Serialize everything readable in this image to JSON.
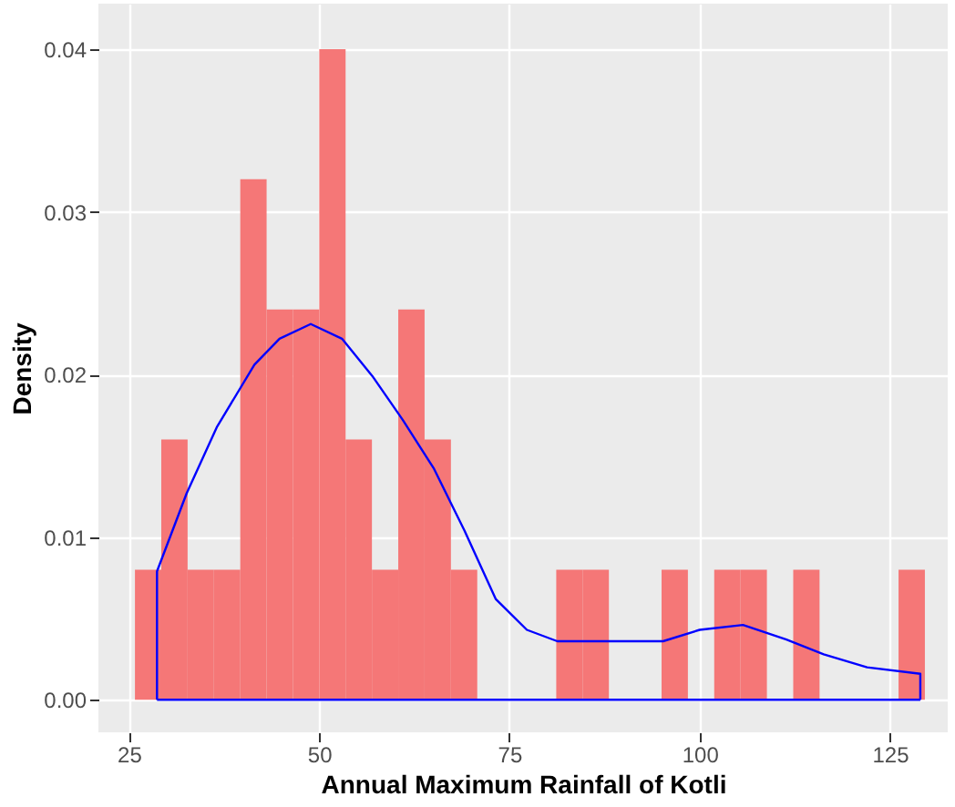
{
  "chart_data": {
    "type": "histogram",
    "xlabel": "Annual Maximum Rainfall of Kotli",
    "ylabel": "Density",
    "bins": [
      25.8,
      29.26,
      32.72,
      36.18,
      39.64,
      43.1,
      46.56,
      50.02,
      53.48,
      56.94,
      60.4,
      63.86,
      67.32,
      70.78,
      74.24,
      77.7,
      81.16,
      84.62,
      88.08,
      91.54,
      95.0,
      98.46,
      101.92,
      105.38,
      108.84,
      112.3,
      115.76,
      119.22,
      122.68,
      126.14,
      129.6
    ],
    "values": [
      0.008,
      0.016,
      0.008,
      0.008,
      0.032,
      0.024,
      0.024,
      0.04,
      0.016,
      0.008,
      0.024,
      0.016,
      0.008,
      0,
      0,
      0,
      0.008,
      0.008,
      0,
      0,
      0.008,
      0,
      0.008,
      0.008,
      0,
      0.008,
      0,
      0,
      0,
      0.008
    ],
    "color": "#f57777",
    "series": [
      {
        "type": "line",
        "color": "#0000ff",
        "x": [
          28.7,
          28.7,
          32.6,
          36.6,
          41.5,
          44.8,
          48.9,
          53.0,
          57.0,
          61.0,
          65.1,
          69.1,
          73.2,
          77.3,
          81.3,
          95.2,
          100.0,
          105.7,
          111.4,
          116.3,
          122.0,
          129.0,
          129.0
        ],
        "values": [
          0,
          0.0079,
          0.0127,
          0.0168,
          0.0206,
          0.0222,
          0.0231,
          0.0222,
          0.0199,
          0.0172,
          0.0142,
          0.0104,
          0.0062,
          0.0043,
          0.0036,
          0.0036,
          0.0043,
          0.0046,
          0.0037,
          0.0028,
          0.002,
          0.0016,
          0
        ]
      },
      {
        "type": "line",
        "color": "#0000ff",
        "x": [
          28.7,
          129.0
        ],
        "values": [
          0,
          0
        ]
      }
    ],
    "xlim": [
      21,
      132.6
    ],
    "ylim": [
      -0.002,
      0.0428
    ],
    "xticks": [
      25,
      50,
      75,
      100,
      125
    ],
    "yticks": [
      {
        "value": 0,
        "label": "0.00"
      },
      {
        "value": 0.01,
        "label": "0.01"
      },
      {
        "value": 0.02,
        "label": "0.02"
      },
      {
        "value": 0.03,
        "label": "0.03"
      },
      {
        "value": 0.04,
        "label": "0.04"
      }
    ],
    "grid": true
  }
}
